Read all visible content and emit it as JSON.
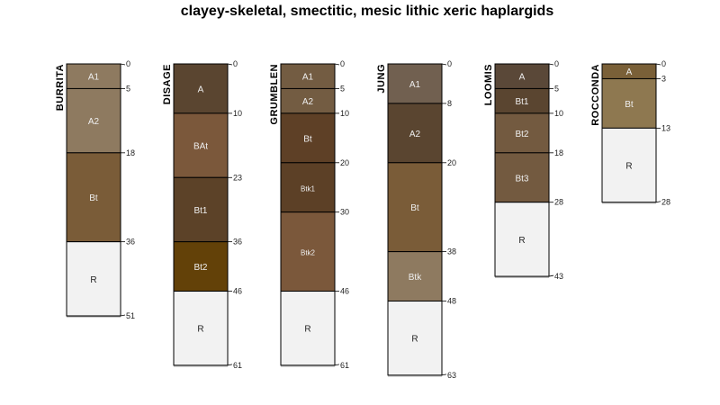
{
  "title": "clayey-skeletal, smectitic, mesic lithic xeric haplargids",
  "profiles": [
    {
      "name": "BURRITA",
      "horizons": [
        {
          "name": "A1",
          "top": 0,
          "bottom": 5,
          "color": "#8E7A60"
        },
        {
          "name": "A2",
          "top": 5,
          "bottom": 18,
          "color": "#8E7A60"
        },
        {
          "name": "Bt",
          "top": 18,
          "bottom": 36,
          "color": "#7A5C38"
        },
        {
          "name": "R",
          "top": 36,
          "bottom": 51,
          "color": "#F2F2F2"
        }
      ]
    },
    {
      "name": "DISAGE",
      "horizons": [
        {
          "name": "A",
          "top": 0,
          "bottom": 10,
          "color": "#5A4530"
        },
        {
          "name": "BAt",
          "top": 10,
          "bottom": 23,
          "color": "#7B583B"
        },
        {
          "name": "Bt1",
          "top": 23,
          "bottom": 36,
          "color": "#5C4228"
        },
        {
          "name": "Bt2",
          "top": 36,
          "bottom": 46,
          "color": "#634108"
        },
        {
          "name": "R",
          "top": 46,
          "bottom": 61,
          "color": "#F2F2F2"
        }
      ]
    },
    {
      "name": "GRUMBLEN",
      "horizons": [
        {
          "name": "A1",
          "top": 0,
          "bottom": 5,
          "color": "#735C42"
        },
        {
          "name": "A2",
          "top": 5,
          "bottom": 10,
          "color": "#735C42"
        },
        {
          "name": "Bt",
          "top": 10,
          "bottom": 20,
          "color": "#5E4026"
        },
        {
          "name": "Btk1",
          "top": 20,
          "bottom": 30,
          "color": "#5C4026"
        },
        {
          "name": "Btk2",
          "top": 30,
          "bottom": 46,
          "color": "#7B583B"
        },
        {
          "name": "R",
          "top": 46,
          "bottom": 61,
          "color": "#F2F2F2"
        }
      ]
    },
    {
      "name": "JUNG",
      "horizons": [
        {
          "name": "A1",
          "top": 0,
          "bottom": 8,
          "color": "#716050"
        },
        {
          "name": "A2",
          "top": 8,
          "bottom": 20,
          "color": "#5A4530"
        },
        {
          "name": "Bt",
          "top": 20,
          "bottom": 38,
          "color": "#7A5C38"
        },
        {
          "name": "Btk",
          "top": 38,
          "bottom": 48,
          "color": "#8E7A60"
        },
        {
          "name": "R",
          "top": 48,
          "bottom": 63,
          "color": "#F2F2F2"
        }
      ]
    },
    {
      "name": "LOOMIS",
      "horizons": [
        {
          "name": "A",
          "top": 0,
          "bottom": 5,
          "color": "#5A4838"
        },
        {
          "name": "Bt1",
          "top": 5,
          "bottom": 10,
          "color": "#5A4530"
        },
        {
          "name": "Bt2",
          "top": 10,
          "bottom": 18,
          "color": "#735A40"
        },
        {
          "name": "Bt3",
          "top": 18,
          "bottom": 28,
          "color": "#735A40"
        },
        {
          "name": "R",
          "top": 28,
          "bottom": 43,
          "color": "#F2F2F2"
        }
      ]
    },
    {
      "name": "ROCCONDA",
      "horizons": [
        {
          "name": "A",
          "top": 0,
          "bottom": 3,
          "color": "#7A6038"
        },
        {
          "name": "Bt",
          "top": 3,
          "bottom": 13,
          "color": "#8E7850"
        },
        {
          "name": "R",
          "top": 13,
          "bottom": 28,
          "color": "#F2F2F2"
        }
      ]
    }
  ]
}
